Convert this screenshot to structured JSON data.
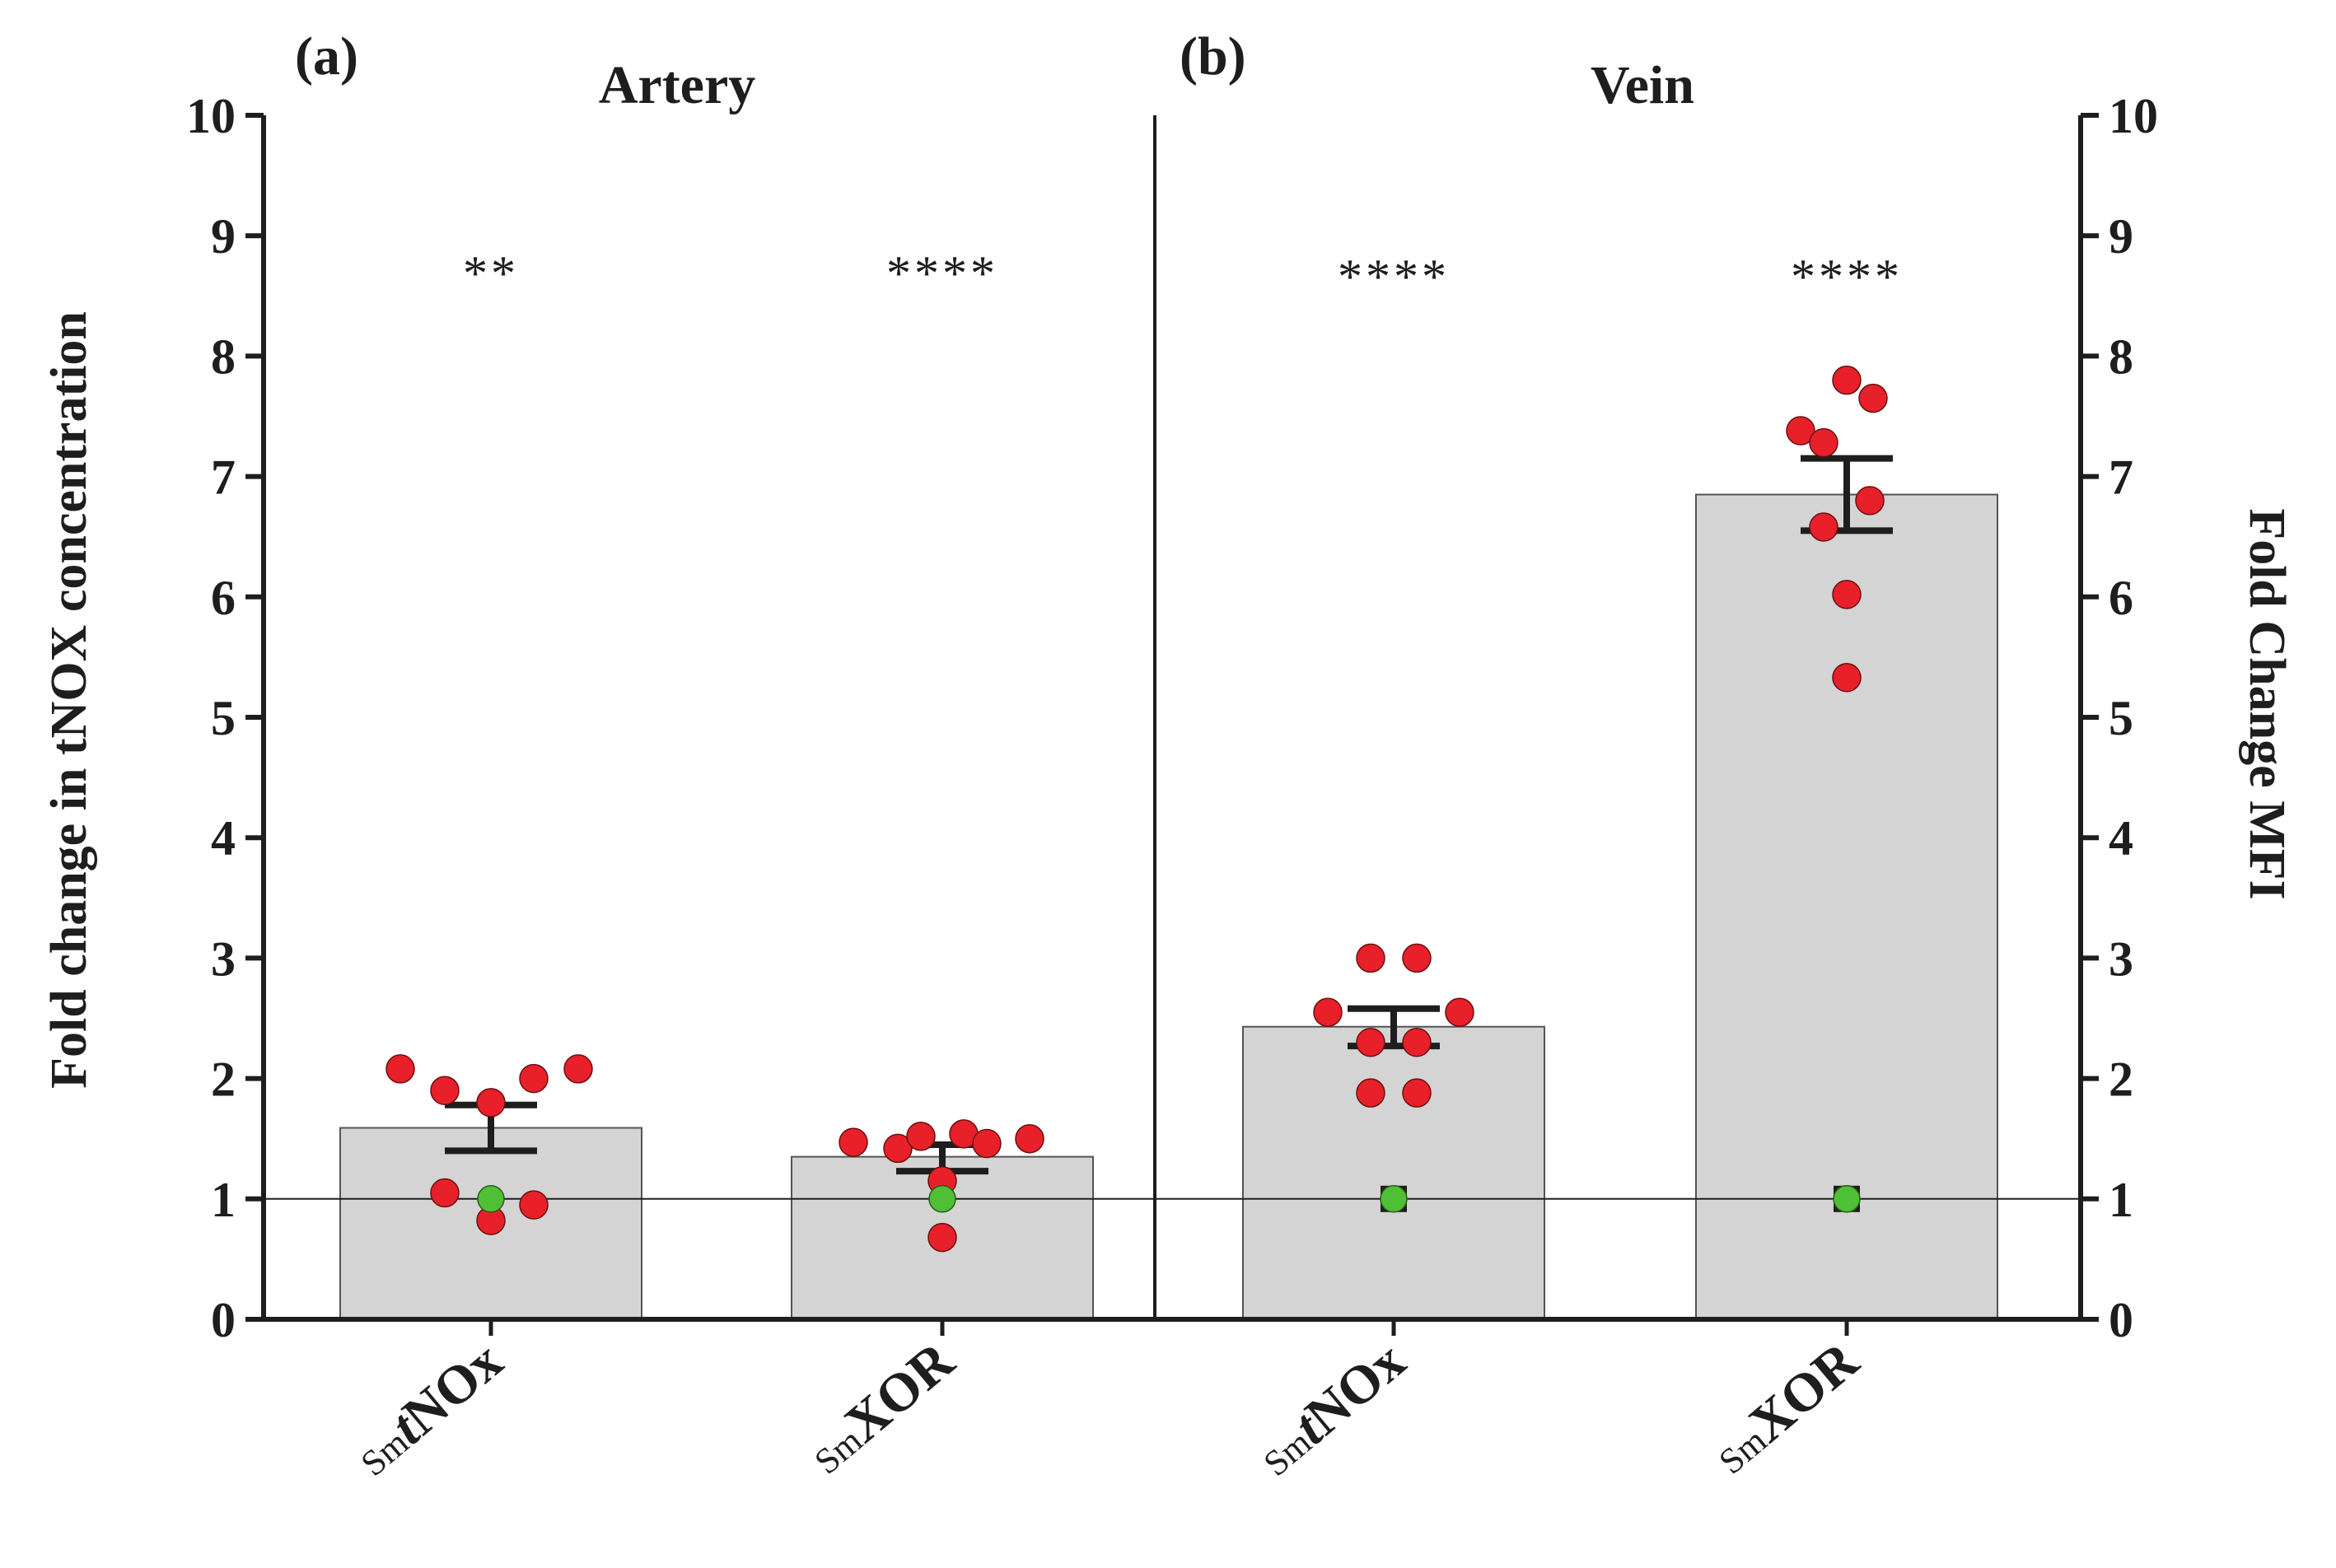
{
  "chart_data": {
    "type": "bar",
    "panels": [
      {
        "letter": "(a)",
        "title": "Artery",
        "axis_side": "left",
        "bars": [
          {
            "label_prefix": "Sm",
            "label_italic": "t",
            "label_main": "NOx",
            "mean": 1.59,
            "sem_low": 1.4,
            "sem_high": 1.78,
            "significance": "**",
            "points": [
              2.08,
              1.9,
              1.8,
              2.0,
              2.08,
              1.05,
              0.82,
              0.95
            ],
            "control": 1.0
          },
          {
            "label_prefix": "Sm",
            "label_italic": "",
            "label_main": "XOR",
            "mean": 1.35,
            "sem_low": 1.23,
            "sem_high": 1.45,
            "significance": "****",
            "points": [
              1.47,
              1.42,
              1.52,
              1.54,
              1.46,
              1.5,
              1.15,
              0.68
            ],
            "control": 1.0
          }
        ]
      },
      {
        "letter": "(b)",
        "title": "Vein",
        "axis_side": "right",
        "bars": [
          {
            "label_prefix": "Sm",
            "label_italic": "t",
            "label_main": "NOx",
            "mean": 2.43,
            "sem_low": 2.27,
            "sem_high": 2.58,
            "significance": "****",
            "points": [
              3.0,
              3.0,
              2.55,
              2.55,
              2.3,
              2.3,
              1.88,
              1.88
            ],
            "control": 1.0
          },
          {
            "label_prefix": "Sm",
            "label_italic": "",
            "label_main": "XOR",
            "mean": 6.85,
            "sem_low": 6.55,
            "sem_high": 7.15,
            "significance": "****",
            "points": [
              7.8,
              7.65,
              7.38,
              7.28,
              6.8,
              6.58,
              6.02,
              5.33
            ],
            "control": 1.0
          }
        ]
      }
    ],
    "ylabel_left": "Fold change in tNOX  concentration",
    "ylabel_right": "Fold Change MFI",
    "ylim": [
      0,
      10
    ],
    "yticks": [
      "0",
      "1",
      "2",
      "3",
      "4",
      "5",
      "6",
      "7",
      "8",
      "9",
      "10"
    ],
    "reference_line": 1,
    "colors": {
      "bar_fill": "#d4d4d4",
      "bar_stroke": "#555555",
      "point": "#e8202a",
      "control_point": "#4fc035",
      "axis": "#1e1e1e"
    }
  }
}
